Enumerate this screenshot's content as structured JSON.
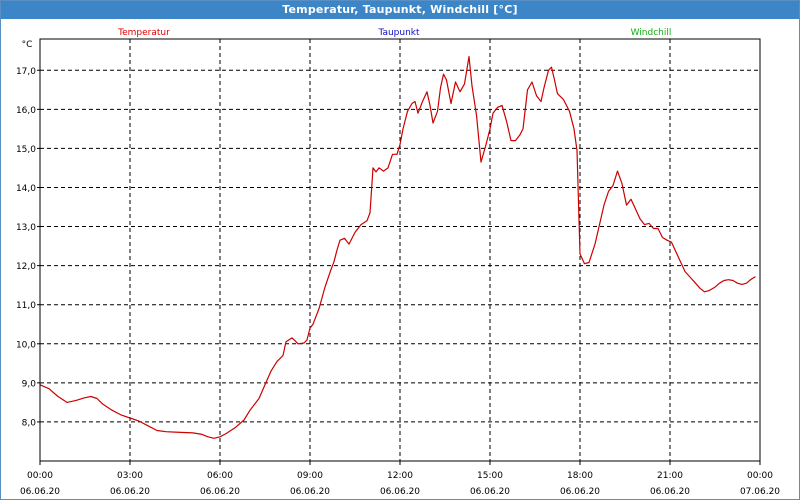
{
  "window": {
    "title": "Temperatur, Taupunkt, Windchill [°C]"
  },
  "legend": [
    {
      "label": "Temperatur",
      "color": "#e00000"
    },
    {
      "label": "Taupunkt",
      "color": "#1010c0"
    },
    {
      "label": "Windchill",
      "color": "#10b010"
    }
  ],
  "chart_data": {
    "type": "line",
    "ylabel": "°C",
    "ylim": [
      7.0,
      17.8
    ],
    "xlim": [
      0,
      24
    ],
    "grid": true,
    "yticks": [
      {
        "value": 8,
        "label": "8,0"
      },
      {
        "value": 9,
        "label": "9,0"
      },
      {
        "value": 10,
        "label": "10,0"
      },
      {
        "value": 11,
        "label": "11,0"
      },
      {
        "value": 12,
        "label": "12,0"
      },
      {
        "value": 13,
        "label": "13,0"
      },
      {
        "value": 14,
        "label": "14,0"
      },
      {
        "value": 15,
        "label": "15,0"
      },
      {
        "value": 16,
        "label": "16,0"
      },
      {
        "value": 17,
        "label": "17,0"
      }
    ],
    "xticks": [
      {
        "value": 0,
        "time": "00:00",
        "date": "06.06.20"
      },
      {
        "value": 3,
        "time": "03:00",
        "date": "06.06.20"
      },
      {
        "value": 6,
        "time": "06:00",
        "date": "06.06.20"
      },
      {
        "value": 9,
        "time": "09:00",
        "date": "06.06.20"
      },
      {
        "value": 12,
        "time": "12:00",
        "date": "06.06.20"
      },
      {
        "value": 15,
        "time": "15:00",
        "date": "06.06.20"
      },
      {
        "value": 18,
        "time": "18:00",
        "date": "06.06.20"
      },
      {
        "value": 21,
        "time": "21:00",
        "date": "06.06.20"
      },
      {
        "value": 24,
        "time": "00:00",
        "date": "07.06.20"
      }
    ],
    "series": [
      {
        "name": "Temperatur",
        "color": "#cc0000",
        "points": [
          [
            0.0,
            8.95
          ],
          [
            0.3,
            8.85
          ],
          [
            0.6,
            8.65
          ],
          [
            0.9,
            8.5
          ],
          [
            1.2,
            8.55
          ],
          [
            1.5,
            8.62
          ],
          [
            1.7,
            8.65
          ],
          [
            1.9,
            8.6
          ],
          [
            2.1,
            8.45
          ],
          [
            2.4,
            8.3
          ],
          [
            2.7,
            8.18
          ],
          [
            3.0,
            8.1
          ],
          [
            3.3,
            8.02
          ],
          [
            3.6,
            7.9
          ],
          [
            3.9,
            7.78
          ],
          [
            4.2,
            7.75
          ],
          [
            4.5,
            7.74
          ],
          [
            4.8,
            7.73
          ],
          [
            5.1,
            7.72
          ],
          [
            5.4,
            7.68
          ],
          [
            5.6,
            7.62
          ],
          [
            5.8,
            7.58
          ],
          [
            6.0,
            7.62
          ],
          [
            6.2,
            7.7
          ],
          [
            6.5,
            7.85
          ],
          [
            6.8,
            8.05
          ],
          [
            7.0,
            8.3
          ],
          [
            7.3,
            8.6
          ],
          [
            7.5,
            8.95
          ],
          [
            7.7,
            9.3
          ],
          [
            7.9,
            9.55
          ],
          [
            8.1,
            9.7
          ],
          [
            8.2,
            10.05
          ],
          [
            8.4,
            10.15
          ],
          [
            8.5,
            10.08
          ],
          [
            8.6,
            10.0
          ],
          [
            8.8,
            10.02
          ],
          [
            8.9,
            10.1
          ],
          [
            9.0,
            10.4
          ],
          [
            9.1,
            10.5
          ],
          [
            9.3,
            10.9
          ],
          [
            9.5,
            11.45
          ],
          [
            9.7,
            11.9
          ],
          [
            9.8,
            12.1
          ],
          [
            9.9,
            12.4
          ],
          [
            10.0,
            12.65
          ],
          [
            10.15,
            12.7
          ],
          [
            10.3,
            12.55
          ],
          [
            10.5,
            12.85
          ],
          [
            10.7,
            13.05
          ],
          [
            10.9,
            13.15
          ],
          [
            11.0,
            13.35
          ],
          [
            11.1,
            14.5
          ],
          [
            11.2,
            14.4
          ],
          [
            11.3,
            14.5
          ],
          [
            11.45,
            14.42
          ],
          [
            11.6,
            14.5
          ],
          [
            11.75,
            14.85
          ],
          [
            11.9,
            14.85
          ],
          [
            12.0,
            15.1
          ],
          [
            12.1,
            15.5
          ],
          [
            12.25,
            15.95
          ],
          [
            12.4,
            16.15
          ],
          [
            12.5,
            16.2
          ],
          [
            12.6,
            15.9
          ],
          [
            12.75,
            16.2
          ],
          [
            12.9,
            16.45
          ],
          [
            13.0,
            16.1
          ],
          [
            13.1,
            15.65
          ],
          [
            13.25,
            15.95
          ],
          [
            13.35,
            16.55
          ],
          [
            13.45,
            16.9
          ],
          [
            13.55,
            16.75
          ],
          [
            13.7,
            16.15
          ],
          [
            13.85,
            16.7
          ],
          [
            14.0,
            16.45
          ],
          [
            14.15,
            16.65
          ],
          [
            14.3,
            17.35
          ],
          [
            14.4,
            16.6
          ],
          [
            14.55,
            15.85
          ],
          [
            14.7,
            14.65
          ],
          [
            14.85,
            15.05
          ],
          [
            15.0,
            15.5
          ],
          [
            15.1,
            15.9
          ],
          [
            15.25,
            16.05
          ],
          [
            15.4,
            16.1
          ],
          [
            15.55,
            15.7
          ],
          [
            15.7,
            15.2
          ],
          [
            15.85,
            15.2
          ],
          [
            16.0,
            15.35
          ],
          [
            16.1,
            15.5
          ],
          [
            16.25,
            16.5
          ],
          [
            16.4,
            16.7
          ],
          [
            16.55,
            16.35
          ],
          [
            16.7,
            16.2
          ],
          [
            16.8,
            16.55
          ],
          [
            16.95,
            17.0
          ],
          [
            17.05,
            17.08
          ],
          [
            17.15,
            16.75
          ],
          [
            17.25,
            16.4
          ],
          [
            17.45,
            16.25
          ],
          [
            17.65,
            15.95
          ],
          [
            17.8,
            15.5
          ],
          [
            17.9,
            14.95
          ],
          [
            18.0,
            12.3
          ],
          [
            18.15,
            12.05
          ],
          [
            18.3,
            12.08
          ],
          [
            18.5,
            12.55
          ],
          [
            18.65,
            13.05
          ],
          [
            18.8,
            13.55
          ],
          [
            18.95,
            13.9
          ],
          [
            19.1,
            14.05
          ],
          [
            19.25,
            14.42
          ],
          [
            19.4,
            14.1
          ],
          [
            19.55,
            13.55
          ],
          [
            19.7,
            13.7
          ],
          [
            19.85,
            13.45
          ],
          [
            20.0,
            13.2
          ],
          [
            20.15,
            13.05
          ],
          [
            20.3,
            13.08
          ],
          [
            20.45,
            12.95
          ],
          [
            20.6,
            12.95
          ],
          [
            20.75,
            12.72
          ],
          [
            20.9,
            12.65
          ],
          [
            21.05,
            12.6
          ],
          [
            21.2,
            12.35
          ],
          [
            21.35,
            12.1
          ],
          [
            21.5,
            11.85
          ],
          [
            21.7,
            11.68
          ],
          [
            21.85,
            11.55
          ],
          [
            22.0,
            11.42
          ],
          [
            22.15,
            11.33
          ],
          [
            22.3,
            11.36
          ],
          [
            22.5,
            11.45
          ],
          [
            22.65,
            11.55
          ],
          [
            22.8,
            11.62
          ],
          [
            22.95,
            11.64
          ],
          [
            23.1,
            11.62
          ],
          [
            23.25,
            11.55
          ],
          [
            23.4,
            11.52
          ],
          [
            23.55,
            11.55
          ],
          [
            23.7,
            11.65
          ],
          [
            23.85,
            11.72
          ]
        ]
      }
    ]
  }
}
